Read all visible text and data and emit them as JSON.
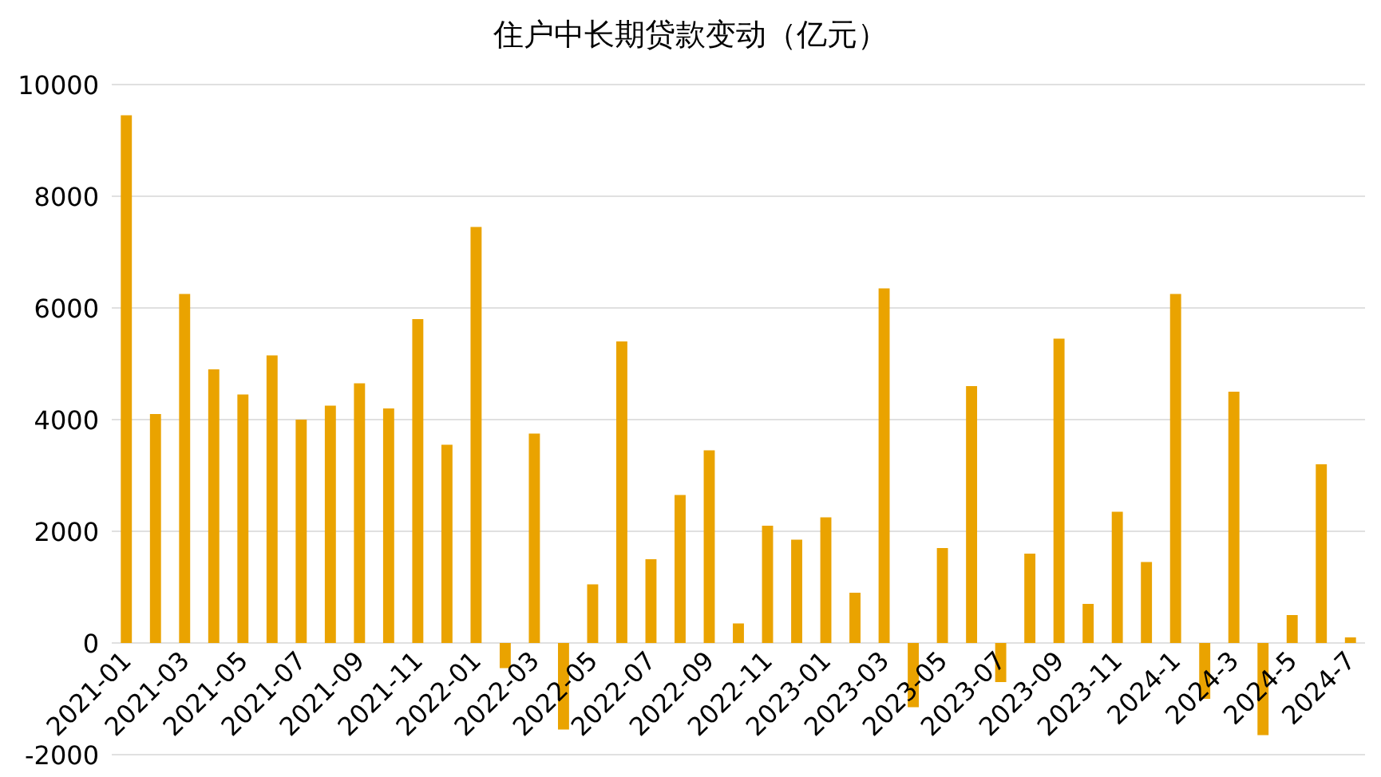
{
  "chart_data": {
    "type": "bar",
    "title": "住户中长期贷款变动（亿元）",
    "categories": [
      "2021-01",
      null,
      "2021-03",
      null,
      "2021-05",
      null,
      "2021-07",
      null,
      "2021-09",
      null,
      "2021-11",
      null,
      "2022-01",
      null,
      "2022-03",
      null,
      "2022-05",
      null,
      "2022-07",
      null,
      "2022-09",
      null,
      "2022-11",
      null,
      "2023-01",
      null,
      "2023-03",
      null,
      "2023-05",
      null,
      "2023-07",
      null,
      "2023-09",
      null,
      "2023-11",
      null,
      "2024-1",
      null,
      "2024-3",
      null,
      "2024-5",
      null,
      "2024-7"
    ],
    "values": [
      9450,
      4100,
      6250,
      4900,
      4450,
      5150,
      4000,
      4250,
      4650,
      4200,
      5800,
      3550,
      7450,
      -450,
      3750,
      -1550,
      1050,
      5400,
      1500,
      2650,
      3450,
      350,
      2100,
      1850,
      2250,
      900,
      6350,
      -1150,
      1700,
      4600,
      -700,
      1600,
      5450,
      700,
      2350,
      1450,
      6250,
      -1000,
      4500,
      -1650,
      500,
      3200,
      100
    ],
    "color": "#eaa300",
    "ylim": [
      -2000,
      10000
    ],
    "yticks": [
      -2000,
      0,
      2000,
      4000,
      6000,
      8000,
      10000
    ],
    "grid": "y"
  }
}
